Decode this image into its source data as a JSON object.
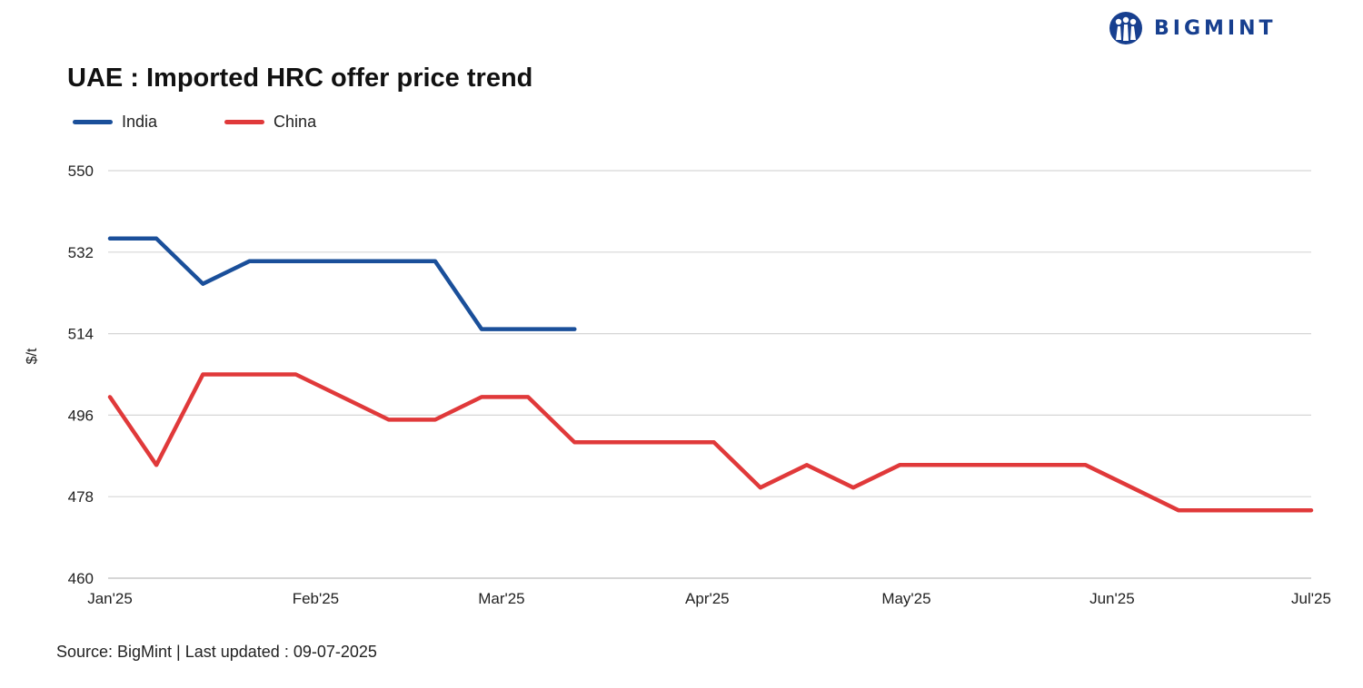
{
  "logo": {
    "text": "BIGMINT",
    "icon": "people-logo-icon"
  },
  "title": "UAE : Imported HRC offer price trend",
  "source": "Source: BigMint | Last updated : 09-07-2025",
  "colors": {
    "India": "#1a4f9a",
    "China": "#e0393a",
    "grid": "#d6d6d6",
    "brand": "#173f8f"
  },
  "chart_data": {
    "type": "line",
    "title": "UAE : Imported HRC offer price trend",
    "xlabel": "",
    "ylabel": "$/t",
    "ylim": [
      460,
      550
    ],
    "yticks": [
      460,
      478,
      496,
      514,
      532,
      550
    ],
    "xlim": [
      "2025-01-01",
      "2025-07-01"
    ],
    "xticks": [
      {
        "date": "2025-01-01",
        "label": "Jan'25"
      },
      {
        "date": "2025-02-01",
        "label": "Feb'25"
      },
      {
        "date": "2025-03-01",
        "label": "Mar'25"
      },
      {
        "date": "2025-04-01",
        "label": "Apr'25"
      },
      {
        "date": "2025-05-01",
        "label": "May'25"
      },
      {
        "date": "2025-06-01",
        "label": "Jun'25"
      },
      {
        "date": "2025-07-01",
        "label": "Jul'25"
      }
    ],
    "grid": true,
    "legend_position": "top-left",
    "series": [
      {
        "name": "India",
        "points": [
          [
            "2025-01-01",
            535
          ],
          [
            "2025-01-08",
            535
          ],
          [
            "2025-01-15",
            525
          ],
          [
            "2025-01-22",
            530
          ],
          [
            "2025-01-29",
            530
          ],
          [
            "2025-02-05",
            530
          ],
          [
            "2025-02-12",
            530
          ],
          [
            "2025-02-19",
            530
          ],
          [
            "2025-02-26",
            515
          ],
          [
            "2025-03-05",
            515
          ],
          [
            "2025-03-12",
            515
          ]
        ]
      },
      {
        "name": "China",
        "points": [
          [
            "2025-01-01",
            500
          ],
          [
            "2025-01-08",
            485
          ],
          [
            "2025-01-15",
            505
          ],
          [
            "2025-01-22",
            505
          ],
          [
            "2025-01-29",
            505
          ],
          [
            "2025-02-05",
            500
          ],
          [
            "2025-02-12",
            495
          ],
          [
            "2025-02-19",
            495
          ],
          [
            "2025-02-26",
            500
          ],
          [
            "2025-03-05",
            500
          ],
          [
            "2025-03-12",
            490
          ],
          [
            "2025-03-19",
            490
          ],
          [
            "2025-03-26",
            490
          ],
          [
            "2025-04-02",
            490
          ],
          [
            "2025-04-09",
            480
          ],
          [
            "2025-04-16",
            485
          ],
          [
            "2025-04-23",
            480
          ],
          [
            "2025-04-30",
            485
          ],
          [
            "2025-05-07",
            485
          ],
          [
            "2025-05-14",
            485
          ],
          [
            "2025-05-21",
            485
          ],
          [
            "2025-05-28",
            485
          ],
          [
            "2025-06-04",
            480
          ],
          [
            "2025-06-11",
            475
          ],
          [
            "2025-06-18",
            475
          ],
          [
            "2025-06-25",
            475
          ],
          [
            "2025-07-01",
            475
          ]
        ]
      }
    ]
  }
}
